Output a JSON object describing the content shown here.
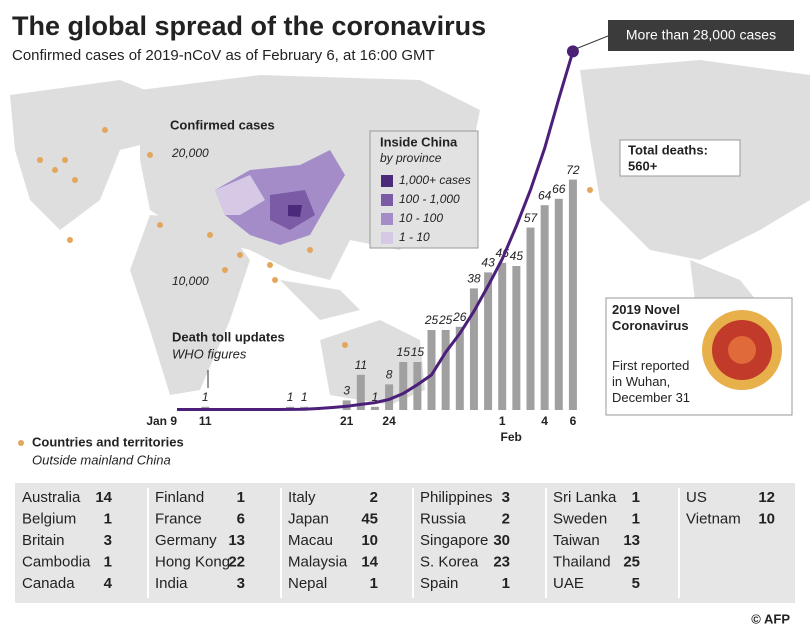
{
  "chart_data": {
    "type": "line-bar",
    "title": "The global spread of the coronavirus",
    "subtitle": "Confirmed cases of 2019-nCoV as of February 6, at 16:00 GMT",
    "categories": [
      "Jan 9",
      null,
      "11",
      null,
      null,
      null,
      null,
      null,
      null,
      null,
      null,
      null,
      "21",
      null,
      null,
      "24",
      null,
      null,
      null,
      null,
      null,
      null,
      null,
      "1",
      null,
      null,
      "4",
      null,
      "6"
    ],
    "x_group_label": "Feb",
    "series": [
      {
        "name": "Confirmed cases",
        "type": "line",
        "color": "#4b1f7a",
        "values": [
          41,
          41,
          41,
          41,
          41,
          41,
          41,
          41,
          45,
          62,
          121,
          198,
          291,
          440,
          571,
          830,
          1287,
          1975,
          2744,
          4515,
          5974,
          7711,
          9692,
          11791,
          14380,
          17205,
          20438,
          24324,
          28018
        ]
      },
      {
        "name": "Death toll updates",
        "type": "bar",
        "axis": "y2",
        "color": "#a0a0a0",
        "values": [
          null,
          null,
          1,
          null,
          null,
          null,
          null,
          null,
          1,
          1,
          null,
          null,
          3,
          11,
          1,
          8,
          15,
          15,
          25,
          25,
          26,
          38,
          43,
          46,
          45,
          57,
          64,
          66,
          72
        ]
      }
    ],
    "bar_note": "WHO figures",
    "ylim": [
      0,
      30000
    ],
    "yticks": [
      {
        "value": 10000,
        "label": "10,000"
      },
      {
        "value": 20000,
        "label": "20,000"
      }
    ],
    "y2lim": [
      0,
      120
    ],
    "annotations": [
      "More than 28,000 cases",
      "Total deaths:",
      "560+"
    ]
  },
  "china_legend": {
    "title": "Inside China",
    "subtitle": "by province",
    "items": [
      {
        "label": "1,000+ cases",
        "color": "#4b2a7b"
      },
      {
        "label": "100 - 1,000",
        "color": "#7b5aa6"
      },
      {
        "label": "10 - 100",
        "color": "#a48cc8"
      },
      {
        "label": "1 - 10",
        "color": "#d5c9e6"
      }
    ]
  },
  "virus_box": {
    "title": "2019 Novel Coronavirus",
    "text": "First reported in Wuhan, December 31"
  },
  "countries_legend": {
    "title": "Countries and territories",
    "subtitle": "Outside mainland China"
  },
  "table": {
    "columns": [
      [
        [
          "Australia",
          "14"
        ],
        [
          "Belgium",
          "1"
        ],
        [
          "Britain",
          "3"
        ],
        [
          "Cambodia",
          "1"
        ],
        [
          "Canada",
          "4"
        ]
      ],
      [
        [
          "Finland",
          "1"
        ],
        [
          "France",
          "6"
        ],
        [
          "Germany",
          "13"
        ],
        [
          "Hong Kong",
          "22"
        ],
        [
          "India",
          "3"
        ]
      ],
      [
        [
          "Italy",
          "2"
        ],
        [
          "Japan",
          "45"
        ],
        [
          "Macau",
          "10"
        ],
        [
          "Malaysia",
          "14"
        ],
        [
          "Nepal",
          "1"
        ]
      ],
      [
        [
          "Philippines",
          "3"
        ],
        [
          "Russia",
          "2"
        ],
        [
          "Singapore",
          "30"
        ],
        [
          "S. Korea",
          "23"
        ],
        [
          "Spain",
          "1"
        ]
      ],
      [
        [
          "Sri Lanka",
          "1"
        ],
        [
          "Sweden",
          "1"
        ],
        [
          "Taiwan",
          "13"
        ],
        [
          "Thailand",
          "25"
        ],
        [
          "UAE",
          "5"
        ]
      ],
      [
        [
          "US",
          "12"
        ],
        [
          "Vietnam",
          "10"
        ]
      ]
    ]
  },
  "footer": {
    "credit": "© AFP"
  }
}
